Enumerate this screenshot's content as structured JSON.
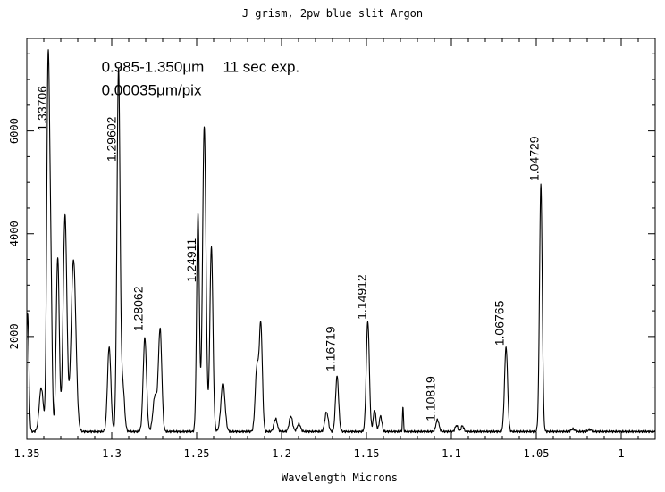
{
  "chart_data": {
    "type": "line",
    "title": "J grism, 2pw blue slit  Argon",
    "xlabel": "Wavelength   Microns",
    "ylabel": "",
    "xlim": [
      1.35,
      0.98
    ],
    "ylim": [
      0,
      7800
    ],
    "x_reversed": true,
    "grid": false,
    "legend": "none",
    "line_color": "#000000",
    "x_ticks": [
      1.35,
      1.3,
      1.25,
      1.2,
      1.15,
      1.1,
      1.05,
      1.0
    ],
    "x_tick_labels": [
      "1.35",
      "1.3",
      "1.25",
      "1.2",
      "1.15",
      "1.1",
      "1.05",
      "1"
    ],
    "y_ticks": [
      2000,
      4000,
      6000
    ],
    "y_tick_labels": [
      "2000",
      "4000",
      "6000"
    ],
    "annotations": [
      {
        "text": "0.985-1.350μm",
        "x": 1.306,
        "y": 7150
      },
      {
        "text": "11 sec exp.",
        "x": 1.2345,
        "y": 7150
      },
      {
        "text": "0.00035μm/pix",
        "x": 1.306,
        "y": 6700
      }
    ],
    "line_labels": [
      {
        "text": "1.33706",
        "x": 1.3385,
        "y": 6000
      },
      {
        "text": "1.29602",
        "x": 1.2975,
        "y": 5400
      },
      {
        "text": "1.28062",
        "x": 1.2819,
        "y": 2100
      },
      {
        "text": "1.24911",
        "x": 1.2505,
        "y": 3050
      },
      {
        "text": "1.16719",
        "x": 1.1686,
        "y": 1320
      },
      {
        "text": "1.14912",
        "x": 1.1503,
        "y": 2330
      },
      {
        "text": "1.10819",
        "x": 1.1097,
        "y": 350
      },
      {
        "text": "1.06765",
        "x": 1.0691,
        "y": 1820
      },
      {
        "text": "1.04729",
        "x": 1.0487,
        "y": 5020
      }
    ],
    "baseline": 150,
    "peaks": [
      {
        "x": 1.3495,
        "h": 2300,
        "w": 0.0007
      },
      {
        "x": 1.3415,
        "h": 850,
        "w": 0.0012
      },
      {
        "x": 1.3375,
        "h": 6800,
        "w": 0.0008
      },
      {
        "x": 1.336,
        "h": 3200,
        "w": 0.0008
      },
      {
        "x": 1.3318,
        "h": 3400,
        "w": 0.0009
      },
      {
        "x": 1.3275,
        "h": 4200,
        "w": 0.0011
      },
      {
        "x": 1.3225,
        "h": 3350,
        "w": 0.0014
      },
      {
        "x": 1.3015,
        "h": 1650,
        "w": 0.001
      },
      {
        "x": 1.296,
        "h": 7050,
        "w": 0.0009
      },
      {
        "x": 1.2935,
        "h": 900,
        "w": 0.001
      },
      {
        "x": 1.2805,
        "h": 1820,
        "w": 0.001
      },
      {
        "x": 1.2745,
        "h": 700,
        "w": 0.0012
      },
      {
        "x": 1.2715,
        "h": 1980,
        "w": 0.001
      },
      {
        "x": 1.2492,
        "h": 4250,
        "w": 0.0008
      },
      {
        "x": 1.2455,
        "h": 5950,
        "w": 0.001
      },
      {
        "x": 1.2413,
        "h": 3600,
        "w": 0.0009
      },
      {
        "x": 1.2345,
        "h": 950,
        "w": 0.0012
      },
      {
        "x": 1.2145,
        "h": 1250,
        "w": 0.001
      },
      {
        "x": 1.2122,
        "h": 2050,
        "w": 0.0009
      },
      {
        "x": 1.2035,
        "h": 250,
        "w": 0.001
      },
      {
        "x": 1.1945,
        "h": 300,
        "w": 0.001
      },
      {
        "x": 1.1898,
        "h": 150,
        "w": 0.001
      },
      {
        "x": 1.1735,
        "h": 380,
        "w": 0.001
      },
      {
        "x": 1.1673,
        "h": 1080,
        "w": 0.0009
      },
      {
        "x": 1.1492,
        "h": 2150,
        "w": 0.0009
      },
      {
        "x": 1.1452,
        "h": 420,
        "w": 0.0008
      },
      {
        "x": 1.1417,
        "h": 300,
        "w": 0.0008
      },
      {
        "x": 1.1285,
        "h": 480,
        "w": 0.0003
      },
      {
        "x": 1.1082,
        "h": 230,
        "w": 0.0009
      },
      {
        "x": 1.097,
        "h": 120,
        "w": 0.0008
      },
      {
        "x": 1.0935,
        "h": 110,
        "w": 0.0008
      },
      {
        "x": 1.0678,
        "h": 1650,
        "w": 0.0009
      },
      {
        "x": 1.0473,
        "h": 4800,
        "w": 0.0008
      },
      {
        "x": 1.0285,
        "h": 50,
        "w": 0.001
      },
      {
        "x": 1.0185,
        "h": 40,
        "w": 0.001
      }
    ]
  }
}
